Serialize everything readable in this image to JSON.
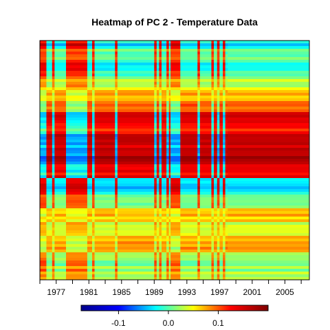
{
  "chart_data": {
    "type": "heatmap",
    "title": "Heatmap of PC 2  - Temperature Data",
    "xlabel": "",
    "ylabel": "",
    "x_range": [
      1975,
      2008
    ],
    "x_ticks": [
      {
        "value": 1977,
        "label": "1977"
      },
      {
        "value": 1981,
        "label": "1981"
      },
      {
        "value": 1985,
        "label": "1985"
      },
      {
        "value": 1989,
        "label": "1989"
      },
      {
        "value": 1993,
        "label": "1993"
      },
      {
        "value": 1997,
        "label": "1997"
      },
      {
        "value": 2001,
        "label": "2001"
      },
      {
        "value": 2005,
        "label": "2005"
      }
    ],
    "colorbar": {
      "range": [
        -0.175,
        0.2
      ],
      "colors": [
        "#00008b",
        "#0000ff",
        "#00ffff",
        "#ffff00",
        "#ff0000",
        "#7f0000"
      ],
      "ticks": [
        {
          "value": -0.1,
          "label": "-0.1"
        },
        {
          "value": 0.0,
          "label": "0.0"
        },
        {
          "value": 0.1,
          "label": "0.1"
        }
      ]
    },
    "column_pattern": [
      {
        "from": 1975.0,
        "to": 1975.8,
        "sign": 1
      },
      {
        "from": 1975.8,
        "to": 1976.5,
        "sign": -1
      },
      {
        "from": 1976.5,
        "to": 1976.8,
        "sign": 1
      },
      {
        "from": 1976.8,
        "to": 1978.2,
        "sign": -1
      },
      {
        "from": 1978.2,
        "to": 1980.8,
        "sign": 1
      },
      {
        "from": 1980.8,
        "to": 1981.4,
        "sign": -1
      },
      {
        "from": 1981.4,
        "to": 1981.7,
        "sign": 1
      },
      {
        "from": 1981.7,
        "to": 1984.2,
        "sign": -1
      },
      {
        "from": 1984.2,
        "to": 1984.5,
        "sign": 1
      },
      {
        "from": 1984.5,
        "to": 1989.0,
        "sign": -1
      },
      {
        "from": 1989.0,
        "to": 1989.3,
        "sign": 1
      },
      {
        "from": 1989.3,
        "to": 1989.6,
        "sign": -1
      },
      {
        "from": 1989.6,
        "to": 1989.9,
        "sign": 1
      },
      {
        "from": 1989.9,
        "to": 1990.5,
        "sign": -1
      },
      {
        "from": 1990.5,
        "to": 1990.8,
        "sign": 1
      },
      {
        "from": 1990.8,
        "to": 1991.0,
        "sign": -1
      },
      {
        "from": 1991.0,
        "to": 1992.2,
        "sign": 1
      },
      {
        "from": 1992.2,
        "to": 1994.3,
        "sign": -1
      },
      {
        "from": 1994.3,
        "to": 1994.6,
        "sign": 1
      },
      {
        "from": 1994.6,
        "to": 1996.0,
        "sign": -1
      },
      {
        "from": 1996.0,
        "to": 1996.3,
        "sign": 1
      },
      {
        "from": 1996.3,
        "to": 1996.7,
        "sign": -1
      },
      {
        "from": 1996.7,
        "to": 1997.0,
        "sign": 1
      },
      {
        "from": 1997.0,
        "to": 1997.4,
        "sign": -1
      },
      {
        "from": 1997.4,
        "to": 1997.7,
        "sign": 1
      },
      {
        "from": 1997.7,
        "to": 1998.0,
        "sign": -1
      },
      {
        "from": 1998.0,
        "to": 2008.0,
        "sign": -1
      }
    ],
    "row_pattern": [
      {
        "from": 0.0,
        "to": 0.04,
        "value": 0.07
      },
      {
        "from": 0.04,
        "to": 0.09,
        "value": 0.04
      },
      {
        "from": 0.09,
        "to": 0.13,
        "value": 0.06
      },
      {
        "from": 0.13,
        "to": 0.16,
        "value": 0.04
      },
      {
        "from": 0.16,
        "to": 0.21,
        "value": 0.02
      },
      {
        "from": 0.21,
        "to": 0.26,
        "value": -0.02
      },
      {
        "from": 0.26,
        "to": 0.3,
        "value": -0.04
      },
      {
        "from": 0.3,
        "to": 0.35,
        "value": -0.08
      },
      {
        "from": 0.35,
        "to": 0.39,
        "value": -0.05
      },
      {
        "from": 0.39,
        "to": 0.45,
        "value": -0.08
      },
      {
        "from": 0.45,
        "to": 0.52,
        "value": -0.09
      },
      {
        "from": 0.52,
        "to": 0.58,
        "value": -0.06
      },
      {
        "from": 0.58,
        "to": 0.64,
        "value": 0.07
      },
      {
        "from": 0.64,
        "to": 0.7,
        "value": 0.04
      },
      {
        "from": 0.7,
        "to": 0.76,
        "value": -0.01
      },
      {
        "from": 0.76,
        "to": 0.82,
        "value": 0.01
      },
      {
        "from": 0.82,
        "to": 0.89,
        "value": -0.02
      },
      {
        "from": 0.89,
        "to": 1.0,
        "value": 0.03
      }
    ]
  }
}
